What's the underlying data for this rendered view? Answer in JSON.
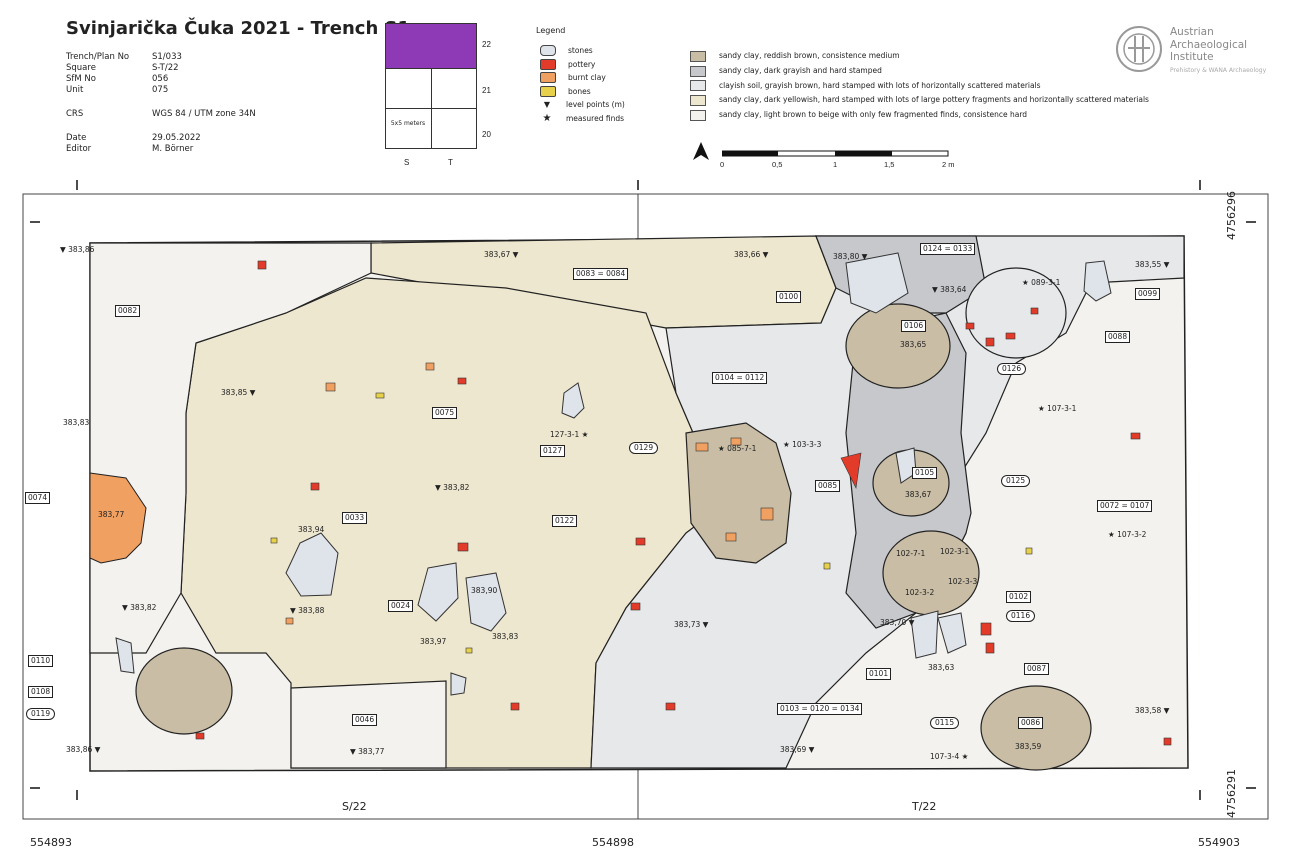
{
  "header": {
    "title": "Svinjarička Čuka 2021 - Trench S1",
    "meta": [
      {
        "key": "Trench/Plan No",
        "value": "S1/033"
      },
      {
        "key": "Square",
        "value": "S-T/22"
      },
      {
        "key": "SfM No",
        "value": "056"
      },
      {
        "key": "Unit",
        "value": "075"
      },
      {
        "key": "CRS",
        "value": "WGS 84 / UTM zone 34N"
      },
      {
        "key": "Date",
        "value": "29.05.2022"
      },
      {
        "key": "Editor",
        "value": "M. Börner"
      }
    ]
  },
  "key_grid": {
    "rows": [
      "22",
      "21",
      "20"
    ],
    "cols": [
      "S",
      "T"
    ],
    "cell_note": "5x5 meters"
  },
  "legend": {
    "title": "Legend",
    "symbols": [
      {
        "label": "stones",
        "color": "#dfe3ea"
      },
      {
        "label": "pottery",
        "color": "#e23b2a"
      },
      {
        "label": "burnt clay",
        "color": "#f0a060"
      },
      {
        "label": "bones",
        "color": "#e8d14a"
      },
      {
        "label": "level points (m)",
        "color": "#111111"
      },
      {
        "label": "measured finds",
        "color": "#111111"
      }
    ],
    "fills": [
      {
        "label": "sandy clay, reddish brown, consistence medium",
        "color": "#c9bda5"
      },
      {
        "label": "sandy clay, dark grayish and hard stamped",
        "color": "#c6c8cc"
      },
      {
        "label": "clayish soil, grayish brown, hard stamped with lots of horizontally scattered materials",
        "color": "#e7e8ea"
      },
      {
        "label": "sandy clay, dark yellowish, hard stamped with lots of large pottery fragments and horizontally scattered materials",
        "color": "#eee7cf"
      },
      {
        "label": "sandy clay, light brown to beige with only few fragmented finds, consistence hard",
        "color": "#f3f2ee"
      }
    ]
  },
  "institution": {
    "name_lines": [
      "Austrian",
      "Archaeological",
      "Institute"
    ],
    "subtitle": "Prehistory & WANA Archaeology"
  },
  "scale_bar": {
    "labels": [
      "0",
      "0,5",
      "1",
      "1,5",
      "2 m"
    ]
  },
  "coords": {
    "x_labels": [
      "554893",
      "554898",
      "554903"
    ],
    "y_labels": [
      "4756296",
      "4756291"
    ],
    "squares": [
      "S/22",
      "T/22"
    ]
  },
  "units": [
    "0082",
    "0083 = 0084",
    "0124 = 0133",
    "0099",
    "0100",
    "0106",
    "0088",
    "0126",
    "0104 = 0112",
    "0075",
    "0127",
    "0129",
    "0085",
    "0105",
    "0125",
    "0072 = 0107",
    "0074",
    "0033",
    "0122",
    "0024",
    "0102",
    "0116",
    "0110",
    "0108",
    "0119",
    "0101",
    "0087",
    "0046",
    "0103 = 0120 = 0134",
    "0115",
    "0086"
  ],
  "level_points": [
    "383,86",
    "383,67",
    "383,66",
    "383,80",
    "383,64",
    "383,55",
    "383,65",
    "383,85",
    "383,83",
    "383,82",
    "383,67",
    "383,77",
    "383,94",
    "383,82",
    "383,88",
    "383,90",
    "383,97",
    "383,83",
    "383,73",
    "383,70",
    "383,63",
    "383,86",
    "383,77",
    "383,69",
    "383,59",
    "383,58"
  ],
  "finds": [
    "127-3-1",
    "085-7-1",
    "103-3-3",
    "089-3-1",
    "107-3-1",
    "107-3-2",
    "102-7-1",
    "102-3-1",
    "102-3-2",
    "102-3-3",
    "107-3-4"
  ]
}
